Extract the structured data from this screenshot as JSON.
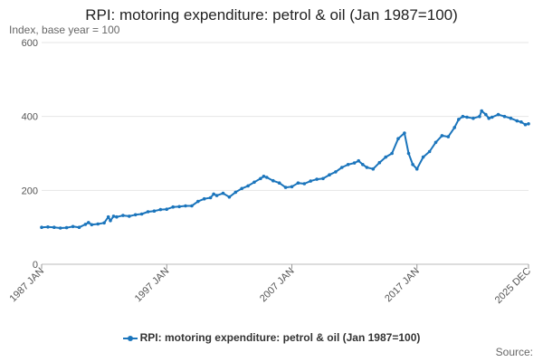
{
  "chart_data": {
    "type": "line",
    "title": "RPI: motoring expenditure: petrol & oil (Jan 1987=100)",
    "subtitle": "Index, base year = 100",
    "x_tick_labels": [
      "1987 JAN",
      "1997 JAN",
      "2007 JAN",
      "2017 JAN",
      "2025 DEC"
    ],
    "y_ticks": [
      0,
      200,
      400,
      600
    ],
    "ylim": [
      0,
      600
    ],
    "xlim": [
      "1987-01",
      "2025-12"
    ],
    "grid": true,
    "legend_position": "bottom",
    "series": [
      {
        "name": "RPI: motoring expenditure: petrol & oil (Jan 1987=100)",
        "color": "#1b75bc",
        "points": [
          [
            "1987-01",
            100
          ],
          [
            "1987-07",
            101
          ],
          [
            "1988-01",
            100
          ],
          [
            "1988-07",
            98
          ],
          [
            "1989-01",
            99
          ],
          [
            "1989-07",
            102
          ],
          [
            "1990-01",
            100
          ],
          [
            "1990-07",
            108
          ],
          [
            "1990-10",
            113
          ],
          [
            "1991-01",
            107
          ],
          [
            "1991-07",
            109
          ],
          [
            "1992-01",
            112
          ],
          [
            "1992-05",
            128
          ],
          [
            "1992-07",
            118
          ],
          [
            "1992-10",
            130
          ],
          [
            "1993-01",
            128
          ],
          [
            "1993-07",
            132
          ],
          [
            "1994-01",
            130
          ],
          [
            "1994-07",
            134
          ],
          [
            "1995-01",
            136
          ],
          [
            "1995-07",
            142
          ],
          [
            "1996-01",
            144
          ],
          [
            "1996-07",
            148
          ],
          [
            "1997-01",
            149
          ],
          [
            "1997-07",
            155
          ],
          [
            "1998-01",
            156
          ],
          [
            "1998-07",
            158
          ],
          [
            "1999-01",
            158
          ],
          [
            "1999-07",
            170
          ],
          [
            "2000-01",
            177
          ],
          [
            "2000-07",
            180
          ],
          [
            "2000-10",
            190
          ],
          [
            "2001-01",
            186
          ],
          [
            "2001-07",
            192
          ],
          [
            "2002-01",
            182
          ],
          [
            "2002-07",
            195
          ],
          [
            "2003-01",
            205
          ],
          [
            "2003-07",
            212
          ],
          [
            "2004-01",
            222
          ],
          [
            "2004-07",
            232
          ],
          [
            "2004-10",
            238
          ],
          [
            "2005-01",
            235
          ],
          [
            "2005-07",
            226
          ],
          [
            "2006-01",
            220
          ],
          [
            "2006-07",
            208
          ],
          [
            "2007-01",
            210
          ],
          [
            "2007-07",
            220
          ],
          [
            "2008-01",
            218
          ],
          [
            "2008-07",
            225
          ],
          [
            "2009-01",
            230
          ],
          [
            "2009-07",
            232
          ],
          [
            "2010-01",
            242
          ],
          [
            "2010-07",
            250
          ],
          [
            "2011-01",
            262
          ],
          [
            "2011-07",
            270
          ],
          [
            "2012-01",
            274
          ],
          [
            "2012-05",
            280
          ],
          [
            "2012-09",
            270
          ],
          [
            "2013-01",
            262
          ],
          [
            "2013-07",
            258
          ],
          [
            "2014-01",
            275
          ],
          [
            "2014-07",
            290
          ],
          [
            "2015-01",
            300
          ],
          [
            "2015-07",
            340
          ],
          [
            "2016-01",
            355
          ],
          [
            "2016-05",
            300
          ],
          [
            "2016-09",
            270
          ],
          [
            "2017-01",
            258
          ],
          [
            "2017-07",
            290
          ],
          [
            "2018-01",
            305
          ],
          [
            "2018-07",
            330
          ],
          [
            "2019-01",
            348
          ],
          [
            "2019-07",
            345
          ],
          [
            "2020-01",
            370
          ],
          [
            "2020-05",
            392
          ],
          [
            "2020-09",
            400
          ],
          [
            "2021-01",
            398
          ],
          [
            "2021-07",
            395
          ],
          [
            "2022-01",
            400
          ],
          [
            "2022-03",
            415
          ],
          [
            "2022-07",
            405
          ],
          [
            "2022-10",
            395
          ],
          [
            "2023-01",
            398
          ],
          [
            "2023-07",
            405
          ],
          [
            "2024-01",
            400
          ],
          [
            "2024-07",
            395
          ],
          [
            "2025-01",
            388
          ],
          [
            "2025-05",
            385
          ],
          [
            "2025-09",
            378
          ],
          [
            "2025-12",
            380
          ]
        ]
      }
    ]
  },
  "source_label": "Source:"
}
